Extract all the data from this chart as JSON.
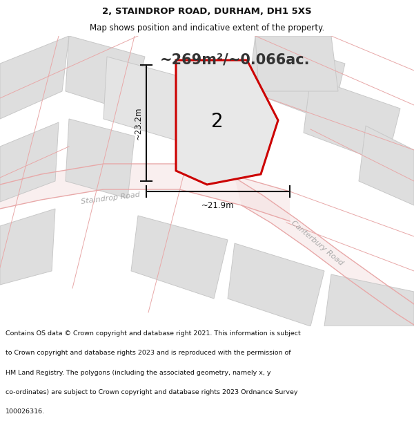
{
  "title_line1": "2, STAINDROP ROAD, DURHAM, DH1 5XS",
  "title_line2": "Map shows position and indicative extent of the property.",
  "area_label": "~269m²/~0.066ac.",
  "property_number": "2",
  "dim_vertical": "~23.2m",
  "dim_horizontal": "~21.9m",
  "road_label1": "Staindrop Road",
  "road_label2": "Canterbury Road",
  "footer_lines": [
    "Contains OS data © Crown copyright and database right 2021. This information is subject",
    "to Crown copyright and database rights 2023 and is reproduced with the permission of",
    "HM Land Registry. The polygons (including the associated geometry, namely x, y",
    "co-ordinates) are subject to Crown copyright and database rights 2023 Ordnance Survey",
    "100026316."
  ],
  "map_bg": "#efefef",
  "property_fill": "#e8e8e8",
  "property_outline_color": "#cc0000",
  "road_line_color": "#e8a8a8",
  "road_fill_color": "#f5e0e0",
  "block_fill": "#dedede",
  "block_edge": "#c8c8c8",
  "dim_line_color": "#111111",
  "road_label_color": "#aaaaaa",
  "area_label_color": "#333333",
  "title_color": "#111111",
  "footer_color": "#111111"
}
